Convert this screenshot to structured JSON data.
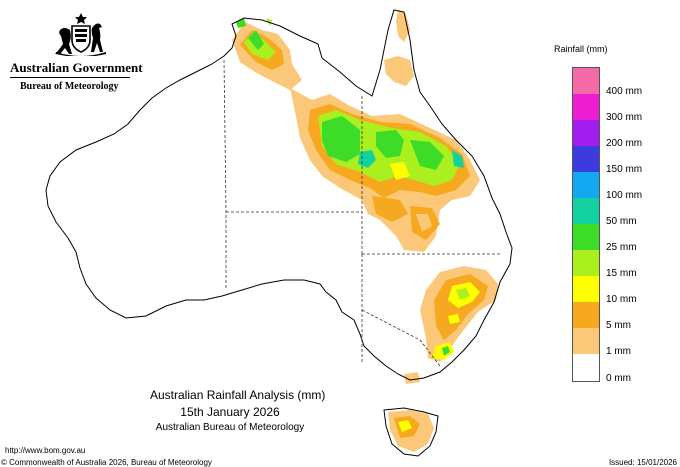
{
  "header": {
    "government": "Australian Government",
    "bureau": "Bureau of Meteorology"
  },
  "legend": {
    "title": "Rainfall (mm)",
    "classes": [
      {
        "label": "400 mm",
        "color": "#f46ba8"
      },
      {
        "label": "300 mm",
        "color": "#f01ed2"
      },
      {
        "label": "200 mm",
        "color": "#a21ef0"
      },
      {
        "label": "150 mm",
        "color": "#3c3cde"
      },
      {
        "label": "100 mm",
        "color": "#14a8f0"
      },
      {
        "label": "50 mm",
        "color": "#14d2a0"
      },
      {
        "label": "25 mm",
        "color": "#3cdc28"
      },
      {
        "label": "15 mm",
        "color": "#aaf01e"
      },
      {
        "label": "10 mm",
        "color": "#ffff00"
      },
      {
        "label": "5 mm",
        "color": "#f6a81e"
      },
      {
        "label": "1 mm",
        "color": "#fac878"
      },
      {
        "label": "0 mm",
        "color": "#ffffff"
      }
    ]
  },
  "caption": {
    "title": "Australian Rainfall Analysis (mm)",
    "date": "15th January 2026",
    "organisation": "Australian Bureau of Meteorology"
  },
  "footer": {
    "url": "http://www.bom.gov.au",
    "copyright": "© Commonwealth of Australia 2026, Bureau of Meteorology",
    "issued": "Issued: 15/01/2026"
  },
  "colors": {
    "coast": "#000000",
    "state_border": "#333333"
  }
}
